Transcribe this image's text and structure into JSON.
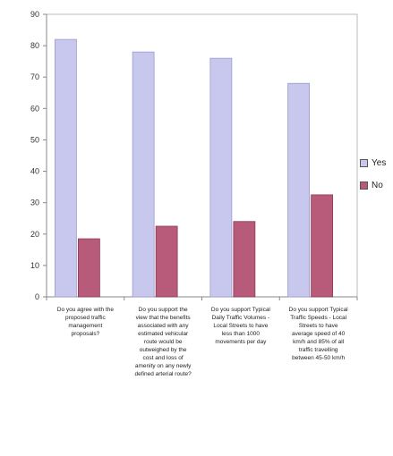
{
  "chart_data": {
    "type": "bar",
    "categories": [
      "Do you agree with the proposed traffic management proposals?",
      "Do you support the view that the benefits associated with any estimated vehicular route would be outweighed by the cost and loss of amenity on any newly defined arterial route?",
      "Do you support Typical Daily Traffic Volumes - Local Streets to have less than 1000 movements per day",
      "Do you support Typical Traffic Speeds - Local Streets to have average speed of 40 km/h and 85% of all traffic travelling between 45-50 km/h"
    ],
    "series": [
      {
        "name": "Yes",
        "values": [
          82,
          78,
          76,
          68
        ],
        "color": "#c8c8ee"
      },
      {
        "name": "No",
        "values": [
          18.5,
          22.5,
          24,
          32.5
        ],
        "color": "#b85a7a"
      }
    ],
    "yticks": [
      "0",
      "10",
      "20",
      "30",
      "40",
      "50",
      "60",
      "70",
      "80",
      "90"
    ],
    "ylim": [
      0,
      90
    ],
    "grid": false,
    "legend": "right",
    "title": "",
    "xlabel": "",
    "ylabel": ""
  }
}
